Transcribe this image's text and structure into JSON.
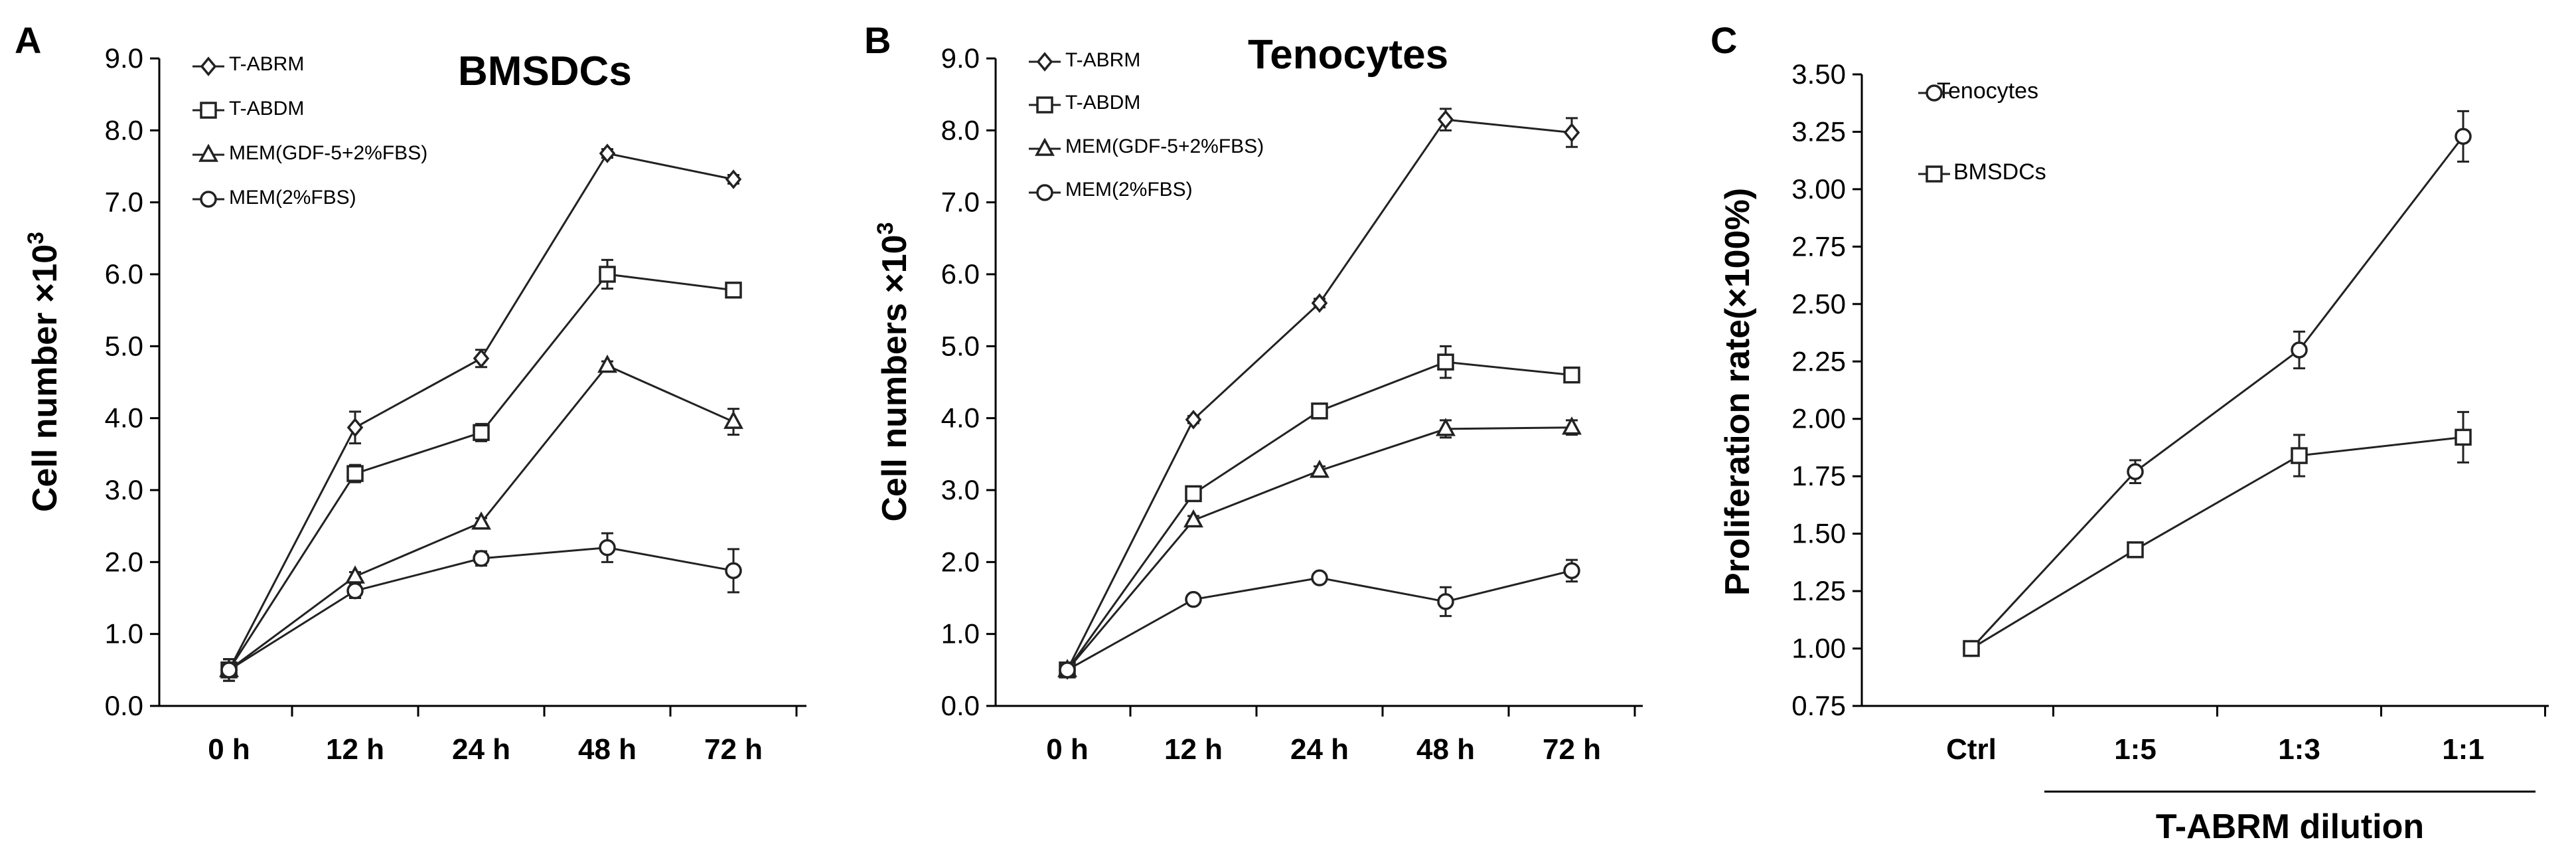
{
  "chart_data": [
    {
      "panel": "A",
      "type": "line",
      "title": "BMSDCs",
      "xlabel": "",
      "ylabel": "Cell number ×10",
      "ylabel_superscript": "3",
      "categories": [
        "0 h",
        "12 h",
        "24 h",
        "48 h",
        "72 h"
      ],
      "ylim": [
        0,
        9
      ],
      "ytick_step": 1,
      "ytick_labels": [
        "0.0",
        "1.0",
        "2.0",
        "3.0",
        "4.0",
        "5.0",
        "6.0",
        "7.0",
        "8.0",
        "9.0"
      ],
      "legend": "top-left",
      "series": [
        {
          "name": "T-ABRM",
          "marker": "diamond",
          "values": [
            0.5,
            3.87,
            4.83,
            7.68,
            7.32
          ],
          "errors": [
            0.15,
            0.22,
            0.12,
            0.06,
            0.06
          ]
        },
        {
          "name": "T-ABDM",
          "marker": "square",
          "values": [
            0.5,
            3.23,
            3.8,
            6.0,
            5.78
          ],
          "errors": [
            0.15,
            0.12,
            0.12,
            0.2,
            0.1
          ]
        },
        {
          "name": "MEM(GDF-5+2%FBS)",
          "marker": "triangle",
          "values": [
            0.5,
            1.8,
            2.55,
            4.73,
            3.95
          ],
          "errors": [
            0.15,
            0.06,
            0.06,
            0.06,
            0.18
          ]
        },
        {
          "name": "MEM(2%FBS)",
          "marker": "circle",
          "values": [
            0.5,
            1.6,
            2.05,
            2.2,
            1.88
          ],
          "errors": [
            0.15,
            0.1,
            0.1,
            0.2,
            0.3
          ]
        }
      ]
    },
    {
      "panel": "B",
      "type": "line",
      "title": "Tenocytes",
      "xlabel": "",
      "ylabel": "Cell numbers ×10",
      "ylabel_superscript": "3",
      "categories": [
        "0 h",
        "12 h",
        "24 h",
        "48 h",
        "72 h"
      ],
      "ylim": [
        0,
        9
      ],
      "ytick_step": 1,
      "ytick_labels": [
        "0.0",
        "1.0",
        "2.0",
        "3.0",
        "4.0",
        "5.0",
        "6.0",
        "7.0",
        "8.0",
        "9.0"
      ],
      "legend": "top-left",
      "series": [
        {
          "name": "T-ABRM",
          "marker": "diamond",
          "values": [
            0.5,
            3.98,
            5.6,
            8.15,
            7.97
          ],
          "errors": [
            0.1,
            0.05,
            0.06,
            0.15,
            0.2
          ]
        },
        {
          "name": "T-ABDM",
          "marker": "square",
          "values": [
            0.5,
            2.95,
            4.1,
            4.78,
            4.6
          ],
          "errors": [
            0.1,
            0.06,
            0.08,
            0.22,
            0.1
          ]
        },
        {
          "name": "MEM(GDF-5+2%FBS)",
          "marker": "triangle",
          "values": [
            0.5,
            2.58,
            3.27,
            3.85,
            3.87
          ],
          "errors": [
            0.1,
            0.06,
            0.06,
            0.12,
            0.1
          ]
        },
        {
          "name": "MEM(2%FBS)",
          "marker": "circle",
          "values": [
            0.5,
            1.48,
            1.78,
            1.45,
            1.88
          ],
          "errors": [
            0.1,
            0.05,
            0.05,
            0.2,
            0.15
          ]
        }
      ]
    },
    {
      "panel": "C",
      "type": "line",
      "title": "",
      "xlabel": "T-ABRM dilution",
      "ylabel": "Proliferation rate(×100%)",
      "categories": [
        "Ctrl",
        "1:5",
        "1:3",
        "1:1"
      ],
      "ylim": [
        0.75,
        3.5
      ],
      "ytick_step": 0.25,
      "ytick_labels": [
        "0.75",
        "1.00",
        "1.25",
        "1.50",
        "1.75",
        "2.00",
        "2.25",
        "2.50",
        "2.75",
        "3.00",
        "3.25",
        "3.50"
      ],
      "legend": "top-left",
      "series": [
        {
          "name": "Tenocytes",
          "marker": "circle",
          "values": [
            1.0,
            1.77,
            2.3,
            3.23
          ],
          "errors": [
            0.0,
            0.05,
            0.08,
            0.11
          ]
        },
        {
          "name": "BMSDCs",
          "marker": "square",
          "values": [
            1.0,
            1.43,
            1.84,
            1.92
          ],
          "errors": [
            0.0,
            0.03,
            0.09,
            0.11
          ]
        }
      ]
    }
  ]
}
